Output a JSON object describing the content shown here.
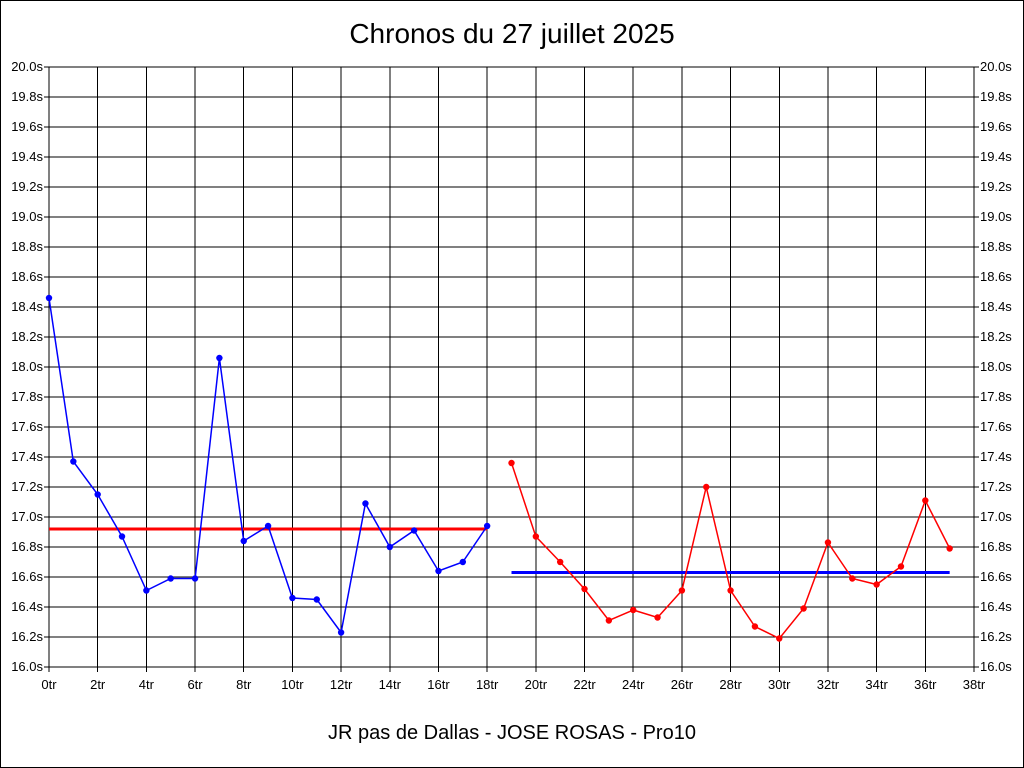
{
  "chart_data": {
    "type": "line",
    "title": "Chronos du 27 juillet 2025",
    "footer": "JR pas de Dallas - JOSE ROSAS - Pro10",
    "x_unit": "tr",
    "y_unit": "s",
    "xlim": [
      0,
      38
    ],
    "ylim": [
      16.0,
      20.0
    ],
    "x_ticks": [
      "0tr",
      "2tr",
      "4tr",
      "6tr",
      "8tr",
      "10tr",
      "12tr",
      "14tr",
      "16tr",
      "18tr",
      "20tr",
      "22tr",
      "24tr",
      "26tr",
      "28tr",
      "30tr",
      "32tr",
      "34tr",
      "36tr",
      "38tr"
    ],
    "y_ticks": [
      "16.0s",
      "16.2s",
      "16.4s",
      "16.6s",
      "16.8s",
      "17.0s",
      "17.2s",
      "17.4s",
      "17.6s",
      "17.8s",
      "18.0s",
      "18.2s",
      "18.4s",
      "18.6s",
      "18.8s",
      "19.0s",
      "19.2s",
      "19.4s",
      "19.6s",
      "19.8s",
      "20.0s"
    ],
    "grid": true,
    "series": [
      {
        "color": "#0000ff",
        "x": [
          0,
          1,
          2,
          3,
          4,
          5,
          6,
          7,
          8,
          9,
          10,
          11,
          12,
          13,
          14,
          15,
          16,
          17,
          18
        ],
        "values": [
          18.46,
          17.37,
          17.15,
          16.87,
          16.51,
          16.59,
          16.59,
          18.06,
          16.84,
          16.94,
          16.46,
          16.45,
          16.23,
          17.09,
          16.8,
          16.91,
          16.64,
          16.7,
          16.94
        ]
      },
      {
        "color": "#ff0000",
        "x": [
          19,
          20,
          21,
          22,
          23,
          24,
          25,
          26,
          27,
          28,
          29,
          30,
          31,
          32,
          33,
          34,
          35,
          36,
          37
        ],
        "values": [
          17.36,
          16.87,
          16.7,
          16.52,
          16.31,
          16.38,
          16.33,
          16.51,
          17.2,
          16.51,
          16.27,
          16.19,
          16.39,
          16.83,
          16.59,
          16.55,
          16.67,
          17.11,
          16.79
        ]
      }
    ],
    "reference_lines": [
      {
        "color": "#ff0000",
        "x": [
          0,
          18
        ],
        "y": 16.92
      },
      {
        "color": "#0000ff",
        "x": [
          19,
          37
        ],
        "y": 16.63
      }
    ]
  }
}
